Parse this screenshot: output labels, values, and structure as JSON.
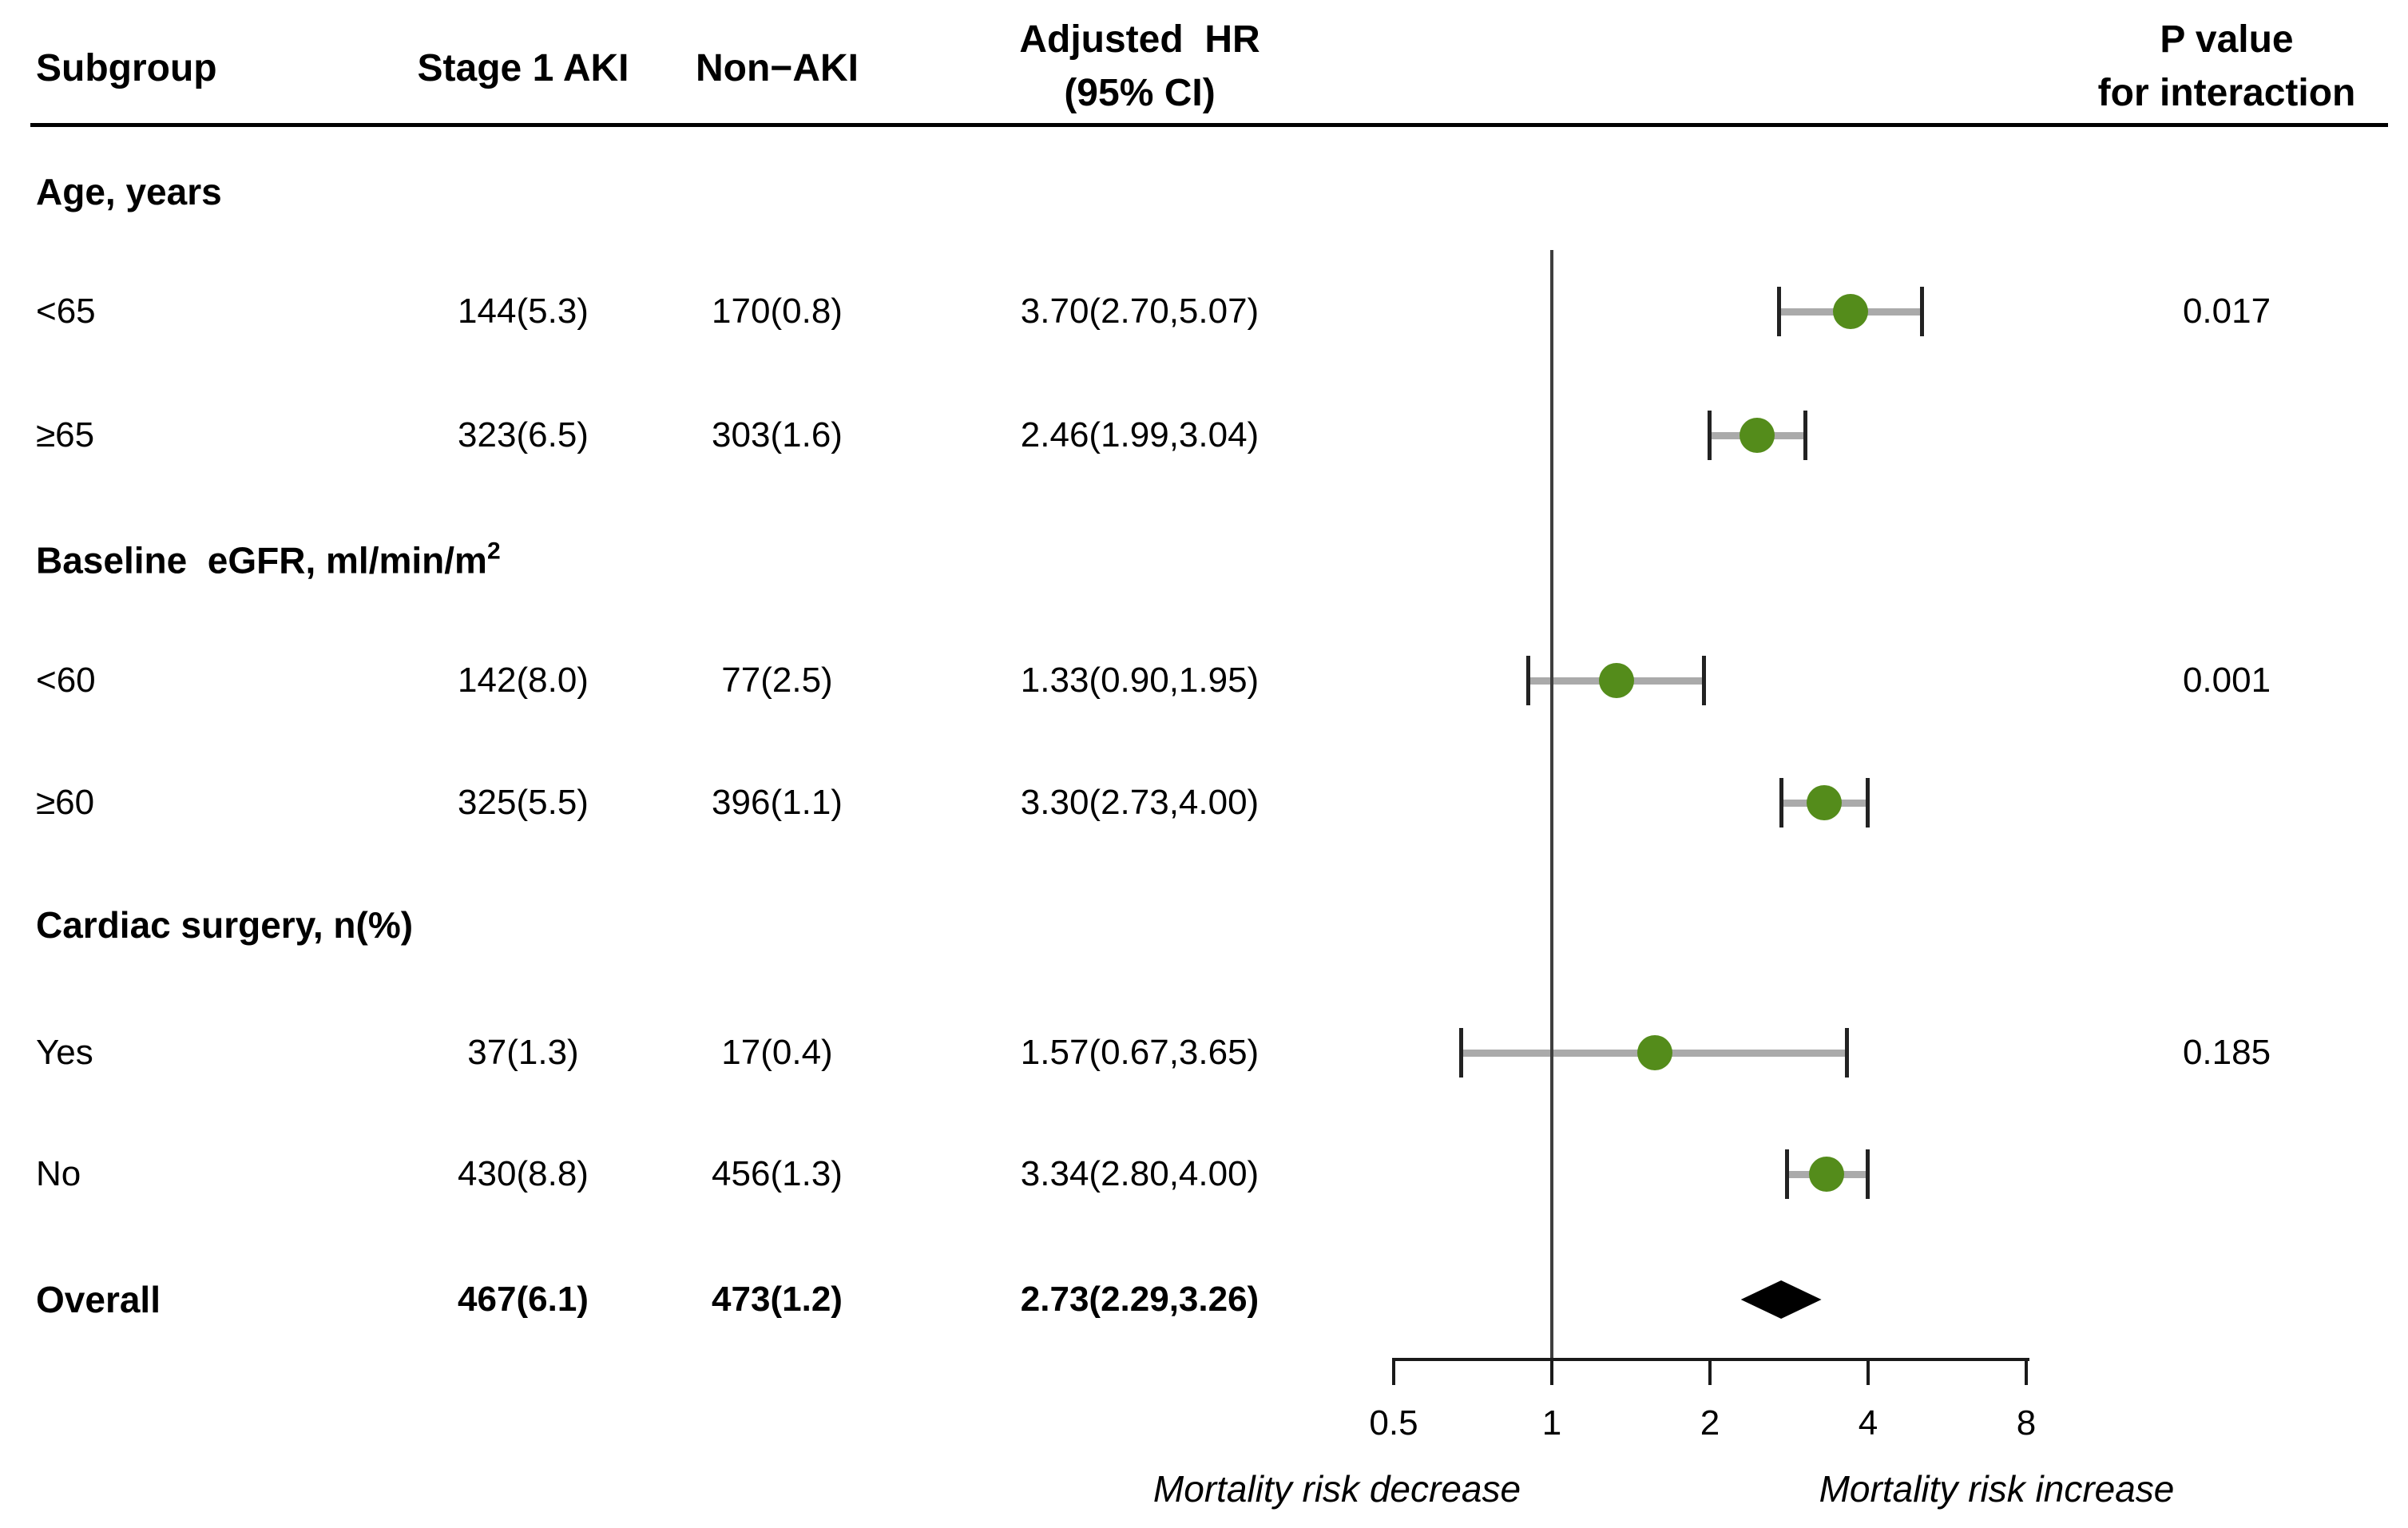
{
  "figure": {
    "header": {
      "subgroup": "Subgroup",
      "stage1_aki": "Stage 1 AKI",
      "non_aki": "Non−AKI",
      "adjusted_hr_line1": "Adjusted  HR",
      "adjusted_hr_line2": "(95% CI)",
      "p_value_line1": "P value",
      "p_value_line2": "for interaction"
    }
  },
  "chart_data": {
    "type": "forest",
    "title": "",
    "x_scale": "log2",
    "x_ticks": [
      0.5,
      1,
      2,
      4,
      8
    ],
    "x_tick_labels": [
      "0.5",
      "1",
      "2",
      "4",
      "8"
    ],
    "xlim": [
      0.5,
      8
    ],
    "reference_line": 1,
    "axis_caption_left": "Mortality risk decrease",
    "axis_caption_right": "Mortality risk increase",
    "colors": {
      "point": "#548c1b",
      "ci_line": "#aaaaaa",
      "ci_cap": "#222222",
      "diamond": "#000000",
      "reference_line": "#3f3f3f"
    },
    "columns": [
      "Subgroup",
      "Stage 1 AKI",
      "Non−AKI",
      "Adjusted HR (95% CI)",
      "P value for interaction"
    ],
    "rows": [
      {
        "type": "section",
        "label": "Age, years"
      },
      {
        "type": "data",
        "label": "<65",
        "stage1": "144(5.3)",
        "nonaki": "170(0.8)",
        "hr_text": "3.70(2.70,5.07)",
        "hr": 3.7,
        "lo": 2.7,
        "hi": 5.07,
        "p": "0.017"
      },
      {
        "type": "data",
        "label": "≥65",
        "stage1": "323(6.5)",
        "nonaki": "303(1.6)",
        "hr_text": "2.46(1.99,3.04)",
        "hr": 2.46,
        "lo": 1.99,
        "hi": 3.04,
        "p": ""
      },
      {
        "type": "section",
        "label": "Baseline  eGFR, ml/min/m",
        "label_sup": "2"
      },
      {
        "type": "data",
        "label": "<60",
        "stage1": "142(8.0)",
        "nonaki": "77(2.5)",
        "hr_text": "1.33(0.90,1.95)",
        "hr": 1.33,
        "lo": 0.9,
        "hi": 1.95,
        "p": "0.001"
      },
      {
        "type": "data",
        "label": "≥60",
        "stage1": "325(5.5)",
        "nonaki": "396(1.1)",
        "hr_text": "3.30(2.73,4.00)",
        "hr": 3.3,
        "lo": 2.73,
        "hi": 4.0,
        "p": ""
      },
      {
        "type": "section",
        "label": "Cardiac surgery, n(%)"
      },
      {
        "type": "data",
        "label": "Yes",
        "stage1": "37(1.3)",
        "nonaki": "17(0.4)",
        "hr_text": "1.57(0.67,3.65)",
        "hr": 1.57,
        "lo": 0.67,
        "hi": 3.65,
        "p": "0.185"
      },
      {
        "type": "data",
        "label": "No",
        "stage1": "430(8.8)",
        "nonaki": "456(1.3)",
        "hr_text": "3.34(2.80,4.00)",
        "hr": 3.34,
        "lo": 2.8,
        "hi": 4.0,
        "p": ""
      },
      {
        "type": "overall",
        "label": "Overall",
        "stage1": "467(6.1)",
        "nonaki": "473(1.2)",
        "hr_text": "2.73(2.29,3.26)",
        "hr": 2.73,
        "lo": 2.29,
        "hi": 3.26,
        "p": ""
      }
    ]
  }
}
